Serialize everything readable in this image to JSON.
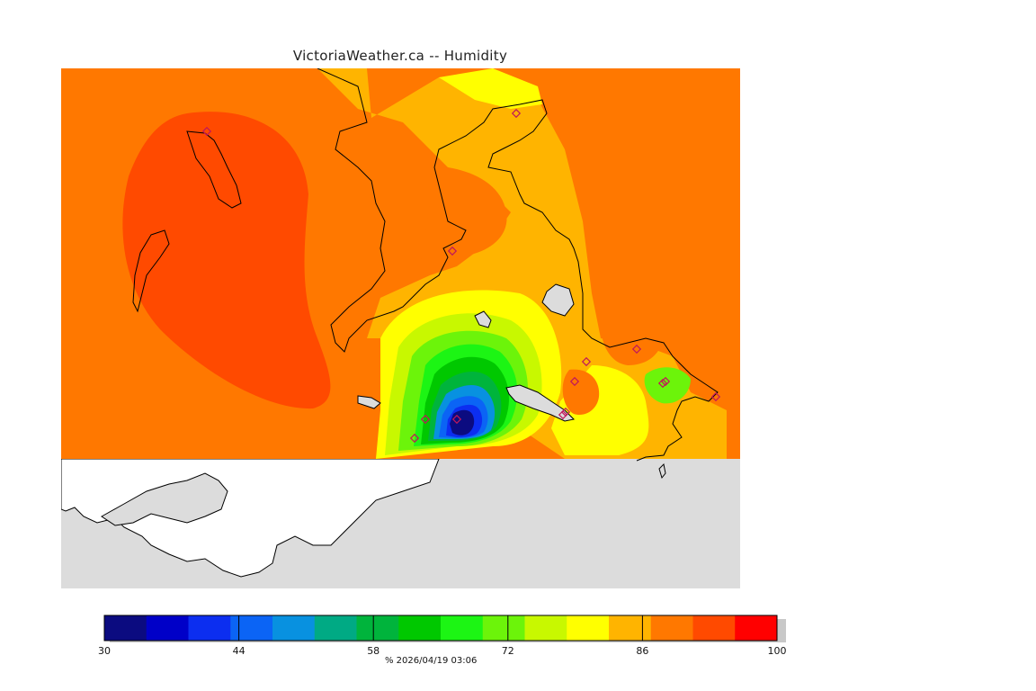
{
  "title": "VictoriaWeather.ca  --  Humidity",
  "map": {
    "land_color": "#dcdcdc",
    "water_color": "#ffffff",
    "station_color": "#c0185a",
    "stations_count_visible": 14
  },
  "legend": {
    "colors": [
      "#0b0b80",
      "#0000c8",
      "#0c2ef0",
      "#0b64f5",
      "#0891e0",
      "#00aa84",
      "#00b43c",
      "#00c800",
      "#1cf514",
      "#6cf40a",
      "#c8f800",
      "#ffff00",
      "#ffb400",
      "#ff7800",
      "#ff4a00",
      "#ff0000"
    ],
    "min": 30,
    "max": 100,
    "ticks": [
      {
        "value": 30,
        "label": "30"
      },
      {
        "value": 44,
        "label": "44"
      },
      {
        "value": 58,
        "label": "58"
      },
      {
        "value": 72,
        "label": "72"
      },
      {
        "value": 86,
        "label": "86"
      },
      {
        "value": 100,
        "label": "100"
      }
    ],
    "caption": "%  2026/04/19 03:06"
  }
}
